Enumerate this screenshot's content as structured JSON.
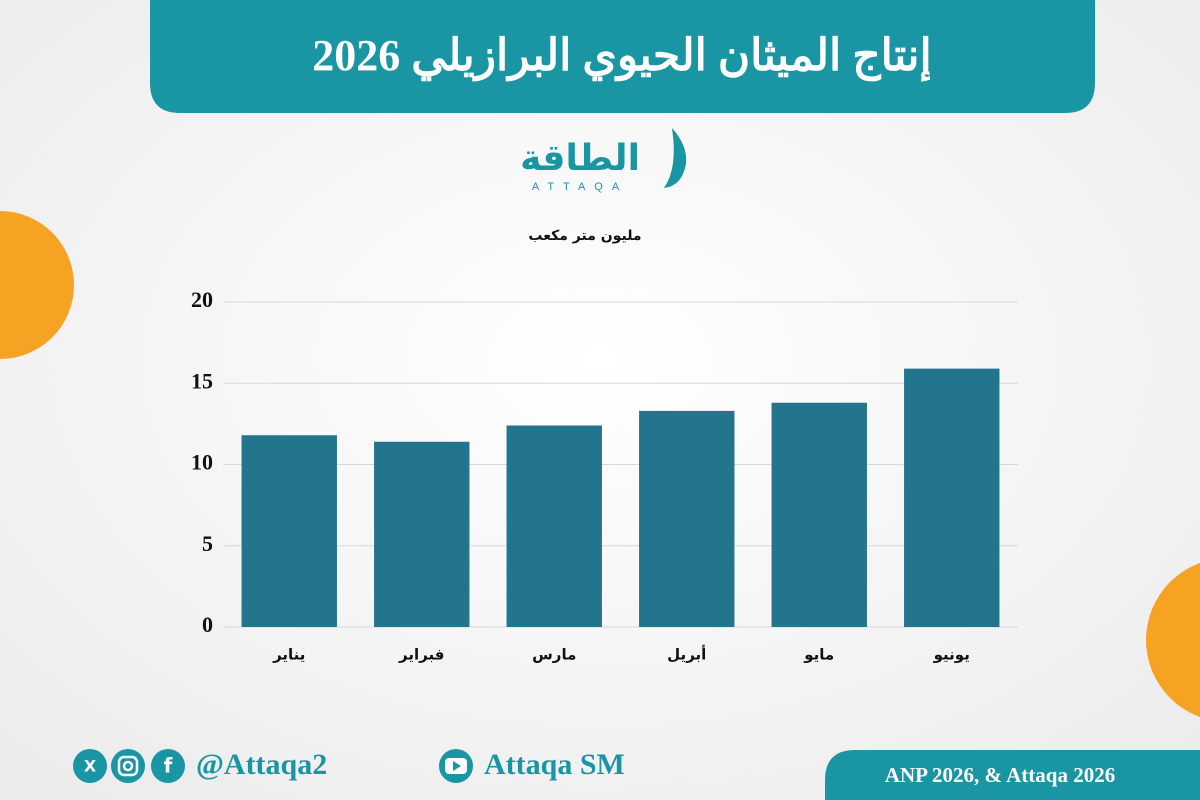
{
  "title": "إنتاج الميثان الحيوي البرازيلي 2026",
  "logo": {
    "arabic": "الطاقة",
    "latin": "ATTAQA"
  },
  "chart_data": {
    "type": "bar",
    "y_label": "مليون متر مكعب",
    "categories": [
      "يناير",
      "فبراير",
      "مارس",
      "أبريل",
      "مايو",
      "يونيو"
    ],
    "values": [
      11.8,
      11.4,
      12.4,
      13.3,
      13.8,
      15.9
    ],
    "color": "#23758e",
    "ylim": [
      0,
      20
    ],
    "yticks": [
      0,
      5,
      10,
      15,
      20
    ],
    "grid": true
  },
  "footer": {
    "handle": "@Attaqa2",
    "channel": "Attaqa SM",
    "source": "ANP 2026, & Attaqa 2026"
  }
}
